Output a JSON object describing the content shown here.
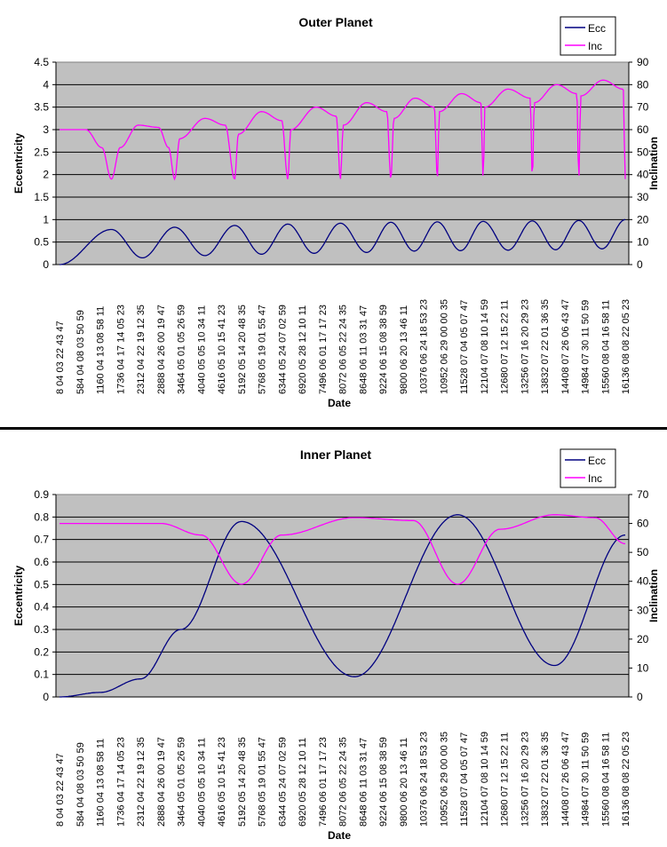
{
  "chart_data": [
    {
      "type": "line",
      "title": "Outer Planet",
      "xlabel": "Date",
      "ylabel": "Eccentricity",
      "y2label": "Inclination",
      "ylim": [
        0,
        4.5
      ],
      "y2lim": [
        0,
        90
      ],
      "yticks": [
        "0",
        "0.5",
        "1",
        "1.5",
        "2",
        "2.5",
        "3",
        "3.5",
        "4",
        "4.5"
      ],
      "y2ticks": [
        "0",
        "10",
        "20",
        "30",
        "40",
        "50",
        "60",
        "70",
        "80",
        "90"
      ],
      "grid": true,
      "legend": {
        "position": "top-right",
        "entries": [
          "Ecc",
          "Inc"
        ]
      },
      "categories": [
        "8 04 03 22 43 47",
        "584 04 08 03 50 59",
        "1160 04 13 08 58 11",
        "1736 04 17 14 05 23",
        "2312 04 22 19 12 35",
        "2888 04 26 00 19 47",
        "3464 05 01 05 26 59",
        "4040 05 05 10 34 11",
        "4616 05 10 15 41 23",
        "5192 05 14 20 48 35",
        "5768 05 19 01 55 47",
        "6344 05 24 07 02 59",
        "6920 05 28 12 10 11",
        "7496 06 01 17 17 23",
        "8072 06 05 22 24 35",
        "8648 06 11 03 31 47",
        "9224 06 15 08 38 59",
        "9800 06 20 13 46 11",
        "10376 06 24 18 53 23",
        "10952 06 29 00 00 35",
        "11528 07 04 05 07 47",
        "12104 07 08 10 14 59",
        "12680 07 12 15 22 11",
        "13256 07 16 20 29 23",
        "13832 07 22 01 36 35",
        "14408 07 26 06 43 47",
        "14984 07 30 11 50 59",
        "15560 08 04 16 58 11",
        "16136 08 08 22 05 23"
      ],
      "series": [
        {
          "name": "Ecc",
          "axis": "left",
          "color": "#000080",
          "points": [
            [
              0,
              0
            ],
            [
              2.57,
              0.78
            ],
            [
              4.1,
              0.15
            ],
            [
              5.7,
              0.83
            ],
            [
              7.2,
              0.2
            ],
            [
              8.67,
              0.87
            ],
            [
              10,
              0.23
            ],
            [
              11.3,
              0.9
            ],
            [
              12.6,
              0.25
            ],
            [
              13.9,
              0.92
            ],
            [
              15.2,
              0.27
            ],
            [
              16.4,
              0.94
            ],
            [
              17.55,
              0.3
            ],
            [
              18.7,
              0.95
            ],
            [
              19.85,
              0.31
            ],
            [
              20.97,
              0.96
            ],
            [
              22.2,
              0.32
            ],
            [
              23.4,
              0.97
            ],
            [
              24.55,
              0.33
            ],
            [
              25.7,
              0.98
            ],
            [
              26.85,
              0.35
            ],
            [
              28,
              1.0
            ]
          ]
        },
        {
          "name": "Inc",
          "axis": "right",
          "color": "#FF00FF",
          "points": [
            [
              0,
              60
            ],
            [
              1.3,
              60
            ],
            [
              2.1,
              52
            ],
            [
              2.57,
              38
            ],
            [
              3.0,
              52
            ],
            [
              3.9,
              62
            ],
            [
              4.9,
              61
            ],
            [
              5.4,
              52
            ],
            [
              5.7,
              38
            ],
            [
              5.95,
              56
            ],
            [
              7.2,
              65
            ],
            [
              8.2,
              62
            ],
            [
              8.67,
              38
            ],
            [
              8.85,
              58
            ],
            [
              10,
              68
            ],
            [
              11.0,
              64
            ],
            [
              11.3,
              38
            ],
            [
              11.45,
              60
            ],
            [
              12.7,
              70
            ],
            [
              13.7,
              66
            ],
            [
              13.9,
              38
            ],
            [
              14.05,
              62
            ],
            [
              15.2,
              72
            ],
            [
              16.2,
              68
            ],
            [
              16.4,
              38
            ],
            [
              16.55,
              65
            ],
            [
              17.6,
              74
            ],
            [
              18.55,
              70
            ],
            [
              18.7,
              38
            ],
            [
              18.8,
              68
            ],
            [
              19.9,
              76
            ],
            [
              20.85,
              72
            ],
            [
              20.97,
              38
            ],
            [
              21.05,
              70
            ],
            [
              22.2,
              78
            ],
            [
              23.3,
              74
            ],
            [
              23.4,
              38
            ],
            [
              23.5,
              72
            ],
            [
              24.6,
              80
            ],
            [
              25.6,
              76
            ],
            [
              25.7,
              38
            ],
            [
              25.8,
              75
            ],
            [
              26.9,
              82
            ],
            [
              27.9,
              78
            ],
            [
              28,
              38
            ]
          ]
        }
      ]
    },
    {
      "type": "line",
      "title": "Inner Planet",
      "xlabel": "Date",
      "ylabel": "Eccentricity",
      "y2label": "Inclination",
      "ylim": [
        0,
        0.9
      ],
      "y2lim": [
        0,
        70
      ],
      "yticks": [
        "0",
        "0.1",
        "0.2",
        "0.3",
        "0.4",
        "0.5",
        "0.6",
        "0.7",
        "0.8",
        "0.9"
      ],
      "y2ticks": [
        "0",
        "10",
        "20",
        "30",
        "40",
        "50",
        "60",
        "70"
      ],
      "grid": true,
      "legend": {
        "position": "top-right",
        "entries": [
          "Ecc",
          "Inc"
        ]
      },
      "categories": [
        "8 04 03 22 43 47",
        "584 04 08 03 50 59",
        "1160 04 13 08 58 11",
        "1736 04 17 14 05 23",
        "2312 04 22 19 12 35",
        "2888 04 26 00 19 47",
        "3464 05 01 05 26 59",
        "4040 05 05 10 34 11",
        "4616 05 10 15 41 23",
        "5192 05 14 20 48 35",
        "5768 05 19 01 55 47",
        "6344 05 24 07 02 59",
        "6920 05 28 12 10 11",
        "7496 06 01 17 17 23",
        "8072 06 05 22 24 35",
        "8648 06 11 03 31 47",
        "9224 06 15 08 38 59",
        "9800 06 20 13 46 11",
        "10376 06 24 18 53 23",
        "10952 06 29 00 00 35",
        "11528 07 04 05 07 47",
        "12104 07 08 10 14 59",
        "12680 07 12 15 22 11",
        "13256 07 16 20 29 23",
        "13832 07 22 01 36 35",
        "14408 07 26 06 43 47",
        "14984 07 30 11 50 59",
        "15560 08 04 16 58 11",
        "16136 08 08 22 05 23"
      ],
      "series": [
        {
          "name": "Ecc",
          "axis": "left",
          "color": "#000080",
          "points": [
            [
              0,
              0
            ],
            [
              2,
              0.02
            ],
            [
              4,
              0.08
            ],
            [
              6,
              0.3
            ],
            [
              9,
              0.78
            ],
            [
              14.6,
              0.09
            ],
            [
              19.7,
              0.81
            ],
            [
              24.5,
              0.14
            ],
            [
              28,
              0.72
            ]
          ]
        },
        {
          "name": "Inc",
          "axis": "right",
          "color": "#FF00FF",
          "points": [
            [
              0,
              60
            ],
            [
              5,
              60
            ],
            [
              7,
              56
            ],
            [
              9,
              39
            ],
            [
              11,
              56
            ],
            [
              14.6,
              62
            ],
            [
              17.5,
              61
            ],
            [
              19.7,
              39
            ],
            [
              21.8,
              58
            ],
            [
              24.5,
              63
            ],
            [
              26.5,
              62
            ],
            [
              28,
              53
            ]
          ]
        }
      ]
    }
  ]
}
